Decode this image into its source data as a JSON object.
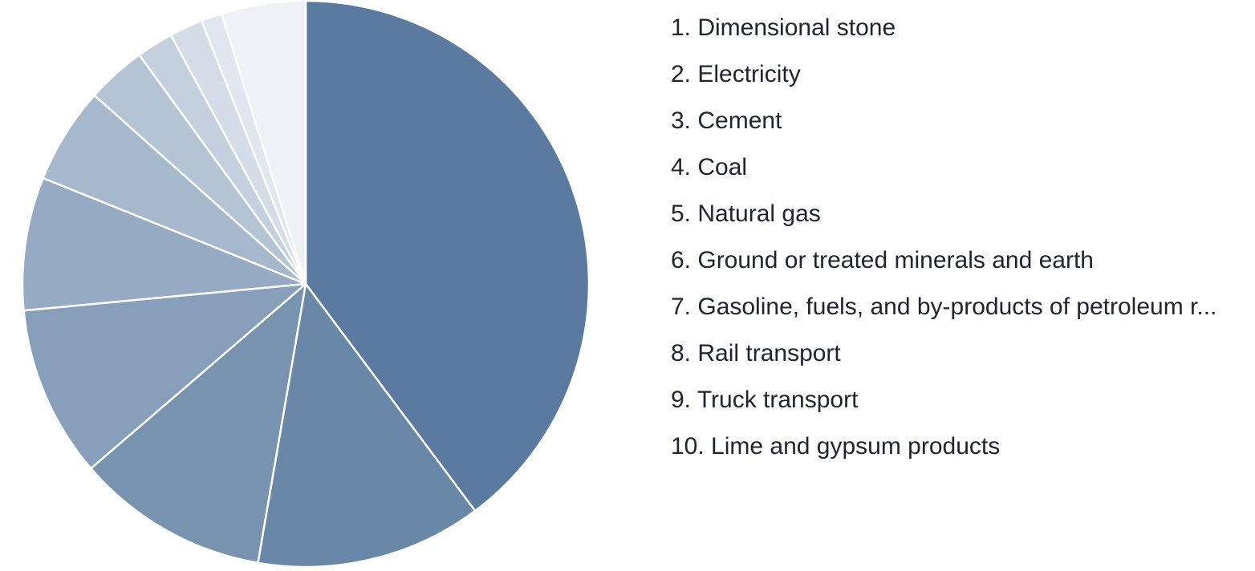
{
  "chart_data": {
    "type": "pie",
    "slices": [
      {
        "label": "1. Dimensional stone",
        "value": 39.8,
        "color": "#5a7b9f"
      },
      {
        "label": "2. Electricity",
        "value": 12.9,
        "color": "#6988a8"
      },
      {
        "label": "3. Cement",
        "value": 11.0,
        "color": "#7893b0"
      },
      {
        "label": "4. Coal",
        "value": 9.8,
        "color": "#879fba"
      },
      {
        "label": "5. Natural gas",
        "value": 7.6,
        "color": "#96abc3"
      },
      {
        "label": "6. Ground or treated minerals and earth",
        "value": 5.5,
        "color": "#a6b8cc"
      },
      {
        "label": "7. Gasoline, fuels, and by-products of petroleum r...",
        "value": 3.4,
        "color": "#b5c4d5"
      },
      {
        "label": "8. Rail transport",
        "value": 2.1,
        "color": "#c4d0de"
      },
      {
        "label": "9. Truck transport",
        "value": 1.9,
        "color": "#d3dce7"
      },
      {
        "label": "10. Lime and gypsum products",
        "value": 1.2,
        "color": "#e1e7ef"
      },
      {
        "label": "",
        "value": 4.8,
        "color": "#eef2f6"
      }
    ],
    "legend_position": "right",
    "slice_border_color": "#ffffff"
  }
}
